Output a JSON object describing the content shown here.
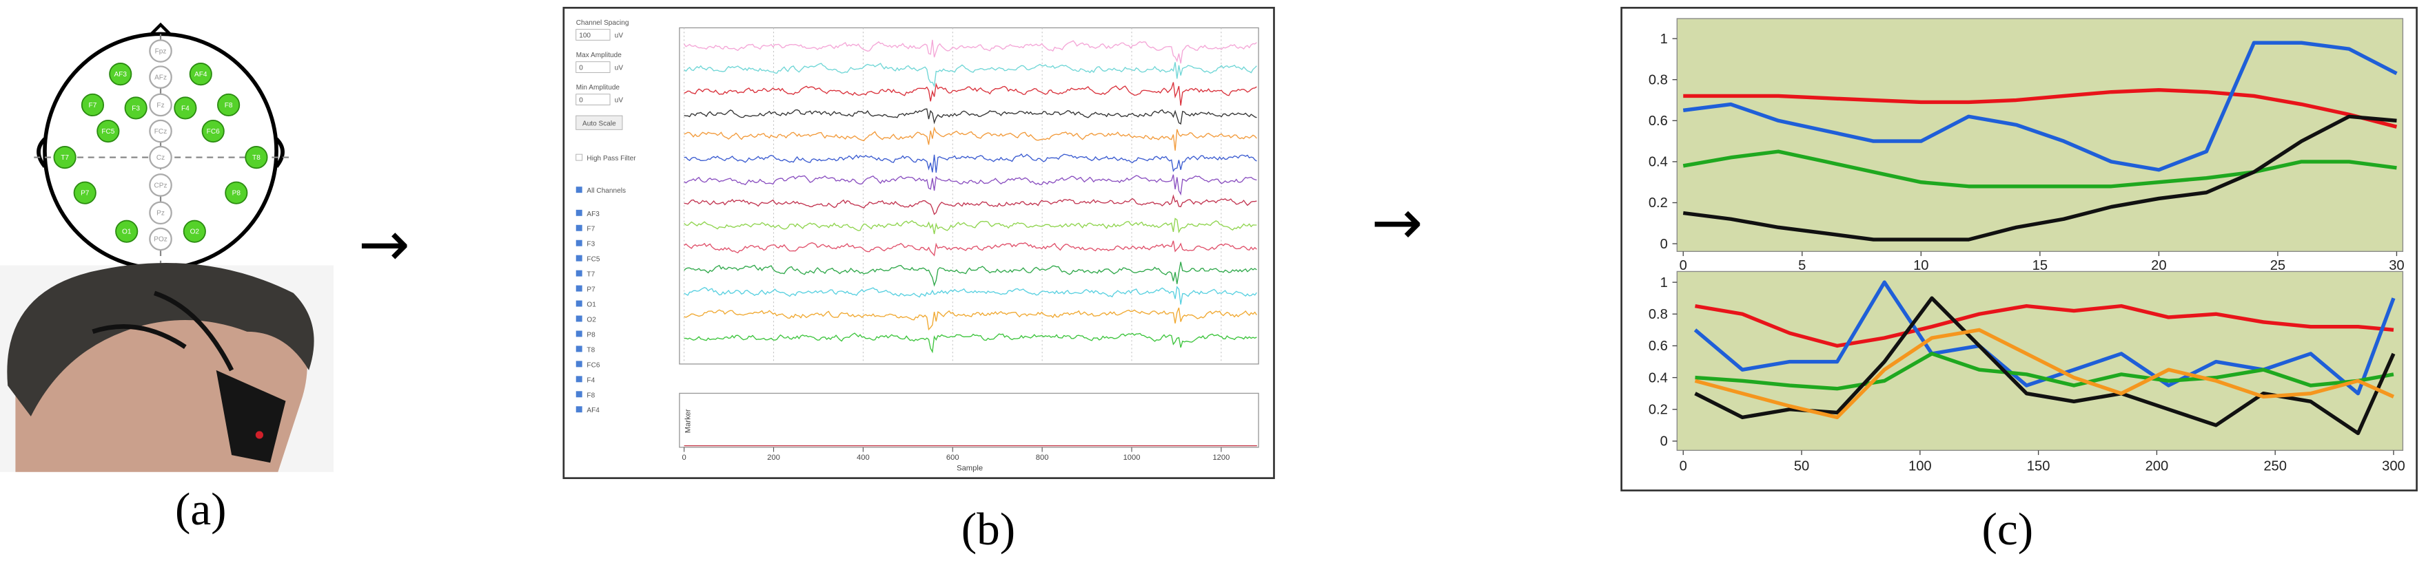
{
  "panel_labels": [
    "(a)",
    "(b)",
    "(c)"
  ],
  "arrows": [
    "→",
    "→"
  ],
  "electrodes": {
    "active": [
      "AF3",
      "AF4",
      "F7",
      "F3",
      "F4",
      "F8",
      "FC5",
      "FC6",
      "T7",
      "T8",
      "P7",
      "P8",
      "O1",
      "O2"
    ],
    "inactive": [
      "Fpz",
      "AFz",
      "Fz",
      "FCz",
      "Cz",
      "CPz",
      "Pz",
      "POz"
    ]
  },
  "eeg_view": {
    "controls": {
      "channel_spacing_label": "Channel Spacing",
      "channel_spacing_value": "100",
      "unit": "uV",
      "max_amplitude_label": "Max Amplitude",
      "max_amplitude_value": "0",
      "min_amplitude_label": "Min Amplitude",
      "min_amplitude_value": "0",
      "auto_scale": "Auto Scale",
      "high_pass_filter": "High Pass Filter",
      "all_channels": "All Channels"
    },
    "channels": [
      {
        "name": "AF3",
        "color": "#f4a6d7"
      },
      {
        "name": "F7",
        "color": "#6fd6d6"
      },
      {
        "name": "F3",
        "color": "#d9303a"
      },
      {
        "name": "FC5",
        "color": "#333333"
      },
      {
        "name": "T7",
        "color": "#f29a3a"
      },
      {
        "name": "P7",
        "color": "#3a5bd0"
      },
      {
        "name": "O1",
        "color": "#8a4fc0"
      },
      {
        "name": "O2",
        "color": "#c23450"
      },
      {
        "name": "P8",
        "color": "#8fd44e"
      },
      {
        "name": "T8",
        "color": "#e0506a"
      },
      {
        "name": "FC6",
        "color": "#2fa84a"
      },
      {
        "name": "F4",
        "color": "#58d0e0"
      },
      {
        "name": "F8",
        "color": "#f0a830"
      },
      {
        "name": "AF4",
        "color": "#3cc43c"
      }
    ],
    "marker_label": "Marker",
    "xlabel": "Sample",
    "xlim": [
      0,
      1280
    ],
    "xticks": [
      0,
      200,
      400,
      600,
      800,
      1000,
      1200
    ]
  },
  "chart_data": [
    {
      "type": "line",
      "plot_background": "#d3dcaa",
      "x": [
        0,
        2,
        4,
        6,
        8,
        10,
        12,
        14,
        16,
        18,
        20,
        22,
        24,
        26,
        28,
        30
      ],
      "xlim": [
        0,
        30
      ],
      "xticks": [
        0,
        5,
        10,
        15,
        20,
        25,
        30
      ],
      "ylim": [
        0,
        1
      ],
      "yticks": [
        0,
        0.2,
        0.4,
        0.6,
        0.8,
        1
      ],
      "series": [
        {
          "color": "#e8141a",
          "values": [
            0.72,
            0.72,
            0.72,
            0.71,
            0.7,
            0.69,
            0.69,
            0.7,
            0.72,
            0.74,
            0.75,
            0.74,
            0.72,
            0.68,
            0.63,
            0.57
          ]
        },
        {
          "color": "#1f5fd8",
          "values": [
            0.65,
            0.68,
            0.6,
            0.55,
            0.5,
            0.5,
            0.62,
            0.58,
            0.5,
            0.4,
            0.36,
            0.45,
            0.98,
            0.98,
            0.95,
            0.83
          ]
        },
        {
          "color": "#1fa81f",
          "values": [
            0.38,
            0.42,
            0.45,
            0.4,
            0.35,
            0.3,
            0.28,
            0.28,
            0.28,
            0.28,
            0.3,
            0.32,
            0.35,
            0.4,
            0.4,
            0.37
          ]
        },
        {
          "color": "#111111",
          "values": [
            0.15,
            0.12,
            0.08,
            0.05,
            0.02,
            0.02,
            0.02,
            0.08,
            0.12,
            0.18,
            0.22,
            0.25,
            0.35,
            0.5,
            0.62,
            0.6
          ]
        }
      ]
    },
    {
      "type": "line",
      "plot_background": "#d3dcaa",
      "x": [
        5,
        25,
        45,
        65,
        85,
        105,
        125,
        145,
        165,
        185,
        205,
        225,
        245,
        265,
        285,
        300
      ],
      "xlim": [
        0,
        300
      ],
      "xticks": [
        0,
        50,
        100,
        150,
        200,
        250,
        300
      ],
      "ylim": [
        0,
        1
      ],
      "yticks": [
        0,
        0.2,
        0.4,
        0.6,
        0.8,
        1
      ],
      "series": [
        {
          "color": "#e8141a",
          "values": [
            0.85,
            0.8,
            0.68,
            0.6,
            0.65,
            0.72,
            0.8,
            0.85,
            0.82,
            0.85,
            0.78,
            0.8,
            0.75,
            0.72,
            0.72,
            0.7
          ]
        },
        {
          "color": "#1f5fd8",
          "values": [
            0.7,
            0.45,
            0.5,
            0.5,
            1.0,
            0.55,
            0.6,
            0.35,
            0.45,
            0.55,
            0.35,
            0.5,
            0.45,
            0.55,
            0.3,
            0.9
          ]
        },
        {
          "color": "#1fa81f",
          "values": [
            0.4,
            0.38,
            0.35,
            0.33,
            0.38,
            0.55,
            0.45,
            0.42,
            0.35,
            0.42,
            0.38,
            0.4,
            0.45,
            0.35,
            0.38,
            0.42
          ]
        },
        {
          "color": "#111111",
          "values": [
            0.3,
            0.15,
            0.2,
            0.18,
            0.5,
            0.9,
            0.6,
            0.3,
            0.25,
            0.3,
            0.2,
            0.1,
            0.3,
            0.25,
            0.05,
            0.55
          ]
        },
        {
          "color": "#f5961e",
          "values": [
            0.38,
            0.3,
            0.22,
            0.15,
            0.45,
            0.65,
            0.7,
            0.55,
            0.4,
            0.3,
            0.45,
            0.38,
            0.28,
            0.3,
            0.38,
            0.28
          ]
        }
      ]
    }
  ]
}
